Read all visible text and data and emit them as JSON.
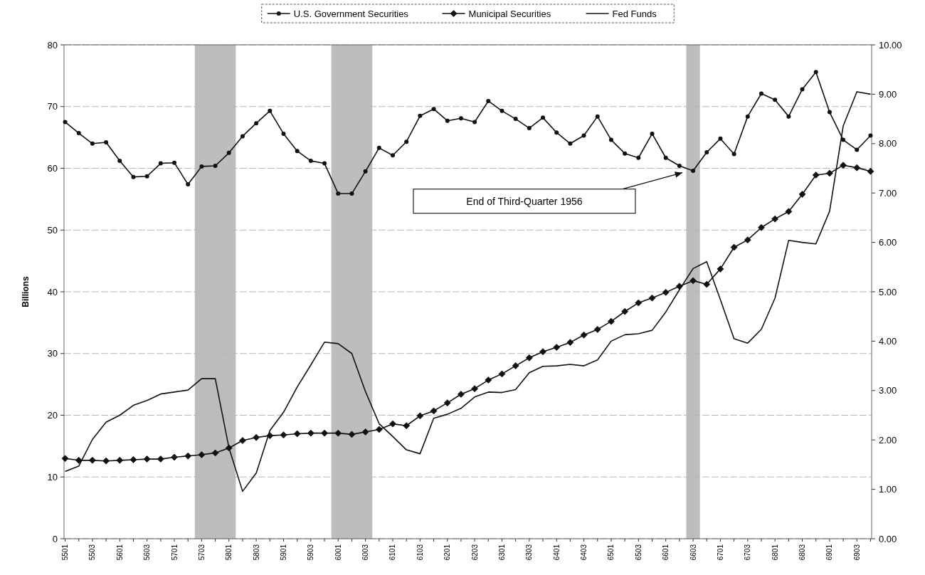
{
  "chart_data": {
    "type": "line",
    "ylabel": "Billions",
    "categories": [
      "5501",
      null,
      "5503",
      null,
      "5601",
      null,
      "5603",
      null,
      "5701",
      null,
      "5703",
      null,
      "5801",
      null,
      "5803",
      null,
      "5901",
      null,
      "5903",
      null,
      "6001",
      null,
      "6003",
      null,
      "6101",
      null,
      "6103",
      null,
      "6201",
      null,
      "6203",
      null,
      "6301",
      null,
      "6303",
      null,
      "6401",
      null,
      "6403",
      null,
      "6501",
      null,
      "6503",
      null,
      "6601",
      null,
      "6603",
      null,
      "6701",
      null,
      "6703",
      null,
      "6801",
      null,
      "6803",
      null,
      "6901",
      null,
      "6903",
      null
    ],
    "series": [
      {
        "name": "U.S. Government Securities",
        "color": "#111111",
        "marker": "circle",
        "values": [
          67.5,
          65.7,
          64.0,
          64.2,
          61.2,
          58.6,
          58.7,
          60.8,
          60.9,
          57.4,
          60.3,
          60.4,
          62.5,
          65.2,
          67.3,
          69.3,
          65.6,
          62.8,
          61.2,
          60.8,
          55.9,
          55.9,
          59.5,
          63.3,
          62.1,
          64.3,
          68.5,
          69.6,
          67.7,
          68.1,
          67.5,
          70.9,
          69.3,
          68.0,
          66.5,
          68.2,
          65.8,
          64.0,
          65.3,
          68.4,
          64.6,
          62.4,
          61.7,
          65.6,
          61.7,
          60.4,
          59.6,
          62.6,
          64.8,
          62.3,
          68.4,
          72.1,
          71.1,
          68.4,
          72.8,
          75.6,
          69.1,
          64.6,
          63.0,
          65.3
        ]
      },
      {
        "name": "Municipal Securities",
        "color": "#111111",
        "marker": "diamond",
        "values": [
          13.0,
          12.7,
          12.7,
          12.6,
          12.7,
          12.8,
          12.9,
          12.9,
          13.2,
          13.4,
          13.6,
          13.9,
          14.7,
          15.9,
          16.4,
          16.7,
          16.8,
          17.0,
          17.1,
          17.1,
          17.1,
          16.9,
          17.3,
          17.7,
          18.6,
          18.3,
          19.9,
          20.7,
          22.0,
          23.4,
          24.3,
          25.7,
          26.7,
          28.0,
          29.3,
          30.3,
          31.0,
          31.8,
          33.0,
          33.9,
          35.2,
          36.8,
          38.2,
          39.0,
          39.9,
          40.9,
          41.8,
          41.2,
          43.7,
          47.2,
          48.4,
          50.4,
          51.8,
          53.0,
          55.8,
          58.9,
          59.2,
          60.5,
          60.1,
          59.5
        ]
      },
      {
        "name": "Fed Funds",
        "color": "#111111",
        "marker": "none",
        "axis": "y2",
        "values": [
          1.36,
          1.47,
          2.01,
          2.36,
          2.5,
          2.7,
          2.8,
          2.93,
          2.97,
          3.01,
          3.24,
          3.24,
          1.84,
          0.96,
          1.33,
          2.19,
          2.56,
          3.07,
          3.52,
          3.98,
          3.95,
          3.75,
          2.98,
          2.33,
          2.07,
          1.8,
          1.72,
          2.44,
          2.52,
          2.64,
          2.87,
          2.97,
          2.96,
          3.02,
          3.36,
          3.49,
          3.5,
          3.53,
          3.5,
          3.62,
          4.0,
          4.13,
          4.15,
          4.22,
          4.59,
          5.04,
          5.47,
          5.61,
          4.84,
          4.05,
          3.96,
          4.24,
          4.87,
          6.04,
          6.0,
          5.97,
          6.63,
          8.36,
          9.05,
          9.0
        ]
      }
    ],
    "ylim": [
      0,
      80
    ],
    "yticks": [
      0,
      10,
      20,
      30,
      40,
      50,
      60,
      70,
      80
    ],
    "y2lim": [
      0,
      10
    ],
    "y2ticks": [
      {
        "value": 0,
        "label": "0.00"
      },
      {
        "value": 1,
        "label": "1.00"
      },
      {
        "value": 2,
        "label": "2.00"
      },
      {
        "value": 3,
        "label": "3.00"
      },
      {
        "value": 4,
        "label": "4.00"
      },
      {
        "value": 5,
        "label": "5.00"
      },
      {
        "value": 6,
        "label": "6.00"
      },
      {
        "value": 7,
        "label": "7.00"
      },
      {
        "value": 8,
        "label": "8.00"
      },
      {
        "value": 9,
        "label": "9.00"
      },
      {
        "value": 10,
        "label": "10.00"
      }
    ],
    "bands": [
      {
        "axis": "x",
        "from": "5703",
        "to": "5801",
        "color": "#bdbdbd"
      },
      {
        "axis": "x",
        "from": "6001",
        "to": "6003",
        "color": "#bdbdbd"
      },
      {
        "axis": "x",
        "from": "6603",
        "to": "6603",
        "color": "#bdbdbd"
      }
    ],
    "annotations": [
      "End of Third-Quarter 1956"
    ],
    "grid": "y",
    "legend": "top",
    "line_style": "solid"
  }
}
